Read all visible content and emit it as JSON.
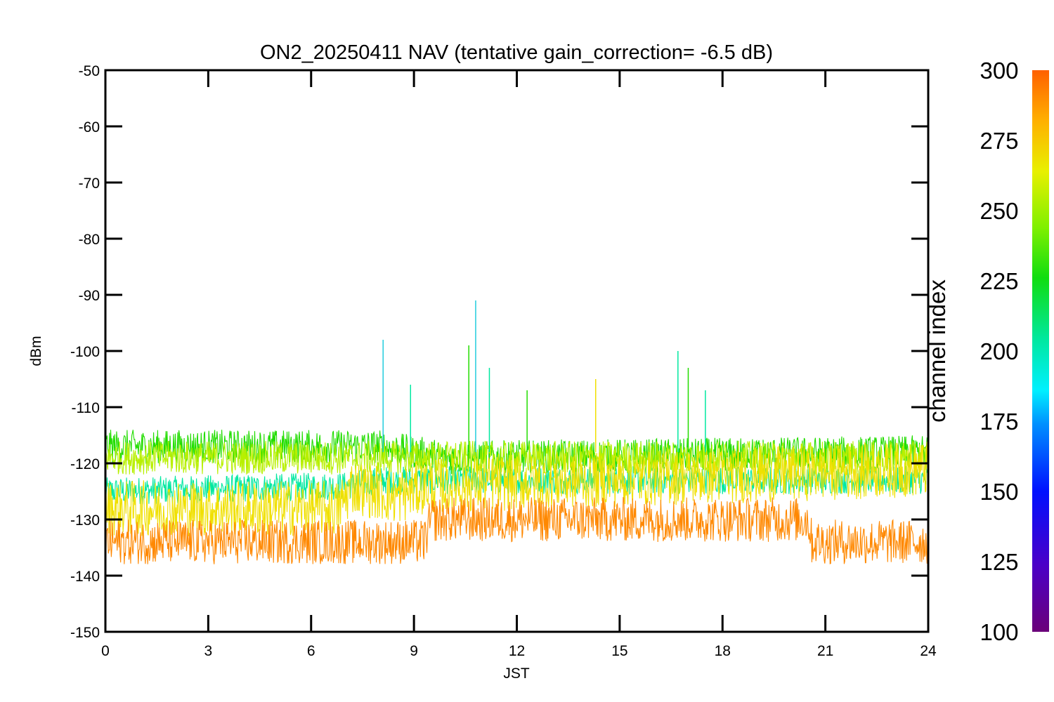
{
  "chart_data": {
    "type": "line",
    "title": "ON2_20250411 NAV (tentative gain_correction= -6.5 dB)",
    "xlabel": "JST",
    "ylabel": "dBm",
    "xlim": [
      0,
      24
    ],
    "ylim": [
      -150,
      -50
    ],
    "x_ticks": [
      "0",
      "3",
      "6",
      "9",
      "12",
      "15",
      "18",
      "21",
      "24"
    ],
    "y_ticks": [
      "-50",
      "-60",
      "-70",
      "-80",
      "-90",
      "-100",
      "-110",
      "-120",
      "-130",
      "-140",
      "-150"
    ],
    "colorbar": {
      "label": "channel index",
      "range": [
        100,
        300
      ],
      "ticks": [
        "300",
        "275",
        "250",
        "225",
        "200",
        "175",
        "150",
        "125",
        "100"
      ],
      "colormap": "rainbow"
    },
    "series": [
      {
        "channel_index": 290,
        "color": "#ff8800",
        "mean_level_dBm": [
          [
            0,
            -134
          ],
          [
            9.3,
            -134
          ],
          [
            9.5,
            -130
          ],
          [
            20.5,
            -130
          ],
          [
            20.6,
            -134
          ],
          [
            24,
            -134
          ]
        ],
        "spread_dBm": 4
      },
      {
        "channel_index": 275,
        "color": "#f0e000",
        "mean_level_dBm": [
          [
            0,
            -128
          ],
          [
            6.8,
            -128
          ],
          [
            7.2,
            -124
          ],
          [
            8.5,
            -126
          ],
          [
            9.3,
            -124
          ],
          [
            24,
            -121
          ]
        ],
        "spread_dBm": 5
      },
      {
        "channel_index": 265,
        "color": "#b8f000",
        "mean_level_dBm": [
          [
            0,
            -119
          ],
          [
            24,
            -119
          ]
        ],
        "spread_dBm": 3
      },
      {
        "channel_index": 240,
        "color": "#22dd00",
        "mean_level_dBm": [
          [
            0,
            -117
          ],
          [
            8,
            -117
          ],
          [
            10,
            -119
          ],
          [
            24,
            -118
          ]
        ],
        "spread_dBm": 3
      },
      {
        "channel_index": 195,
        "color": "#00e8a0",
        "mean_level_dBm": [
          [
            0,
            -125
          ],
          [
            7,
            -124
          ],
          [
            8,
            -123
          ],
          [
            24,
            -123
          ]
        ],
        "spread_dBm": 2.5
      }
    ],
    "spikes": [
      {
        "x": 8.1,
        "y": -98,
        "color": "#22ccdd"
      },
      {
        "x": 8.9,
        "y": -106,
        "color": "#00e8a0"
      },
      {
        "x": 10.6,
        "y": -99,
        "color": "#22dd00"
      },
      {
        "x": 10.8,
        "y": -91,
        "color": "#22ccdd"
      },
      {
        "x": 11.2,
        "y": -103,
        "color": "#00e8a0"
      },
      {
        "x": 12.3,
        "y": -107,
        "color": "#22dd00"
      },
      {
        "x": 14.3,
        "y": -105,
        "color": "#f0e000"
      },
      {
        "x": 16.7,
        "y": -100,
        "color": "#00e8a0"
      },
      {
        "x": 17.0,
        "y": -103,
        "color": "#22dd00"
      },
      {
        "x": 17.5,
        "y": -107,
        "color": "#00e8a0"
      }
    ]
  }
}
